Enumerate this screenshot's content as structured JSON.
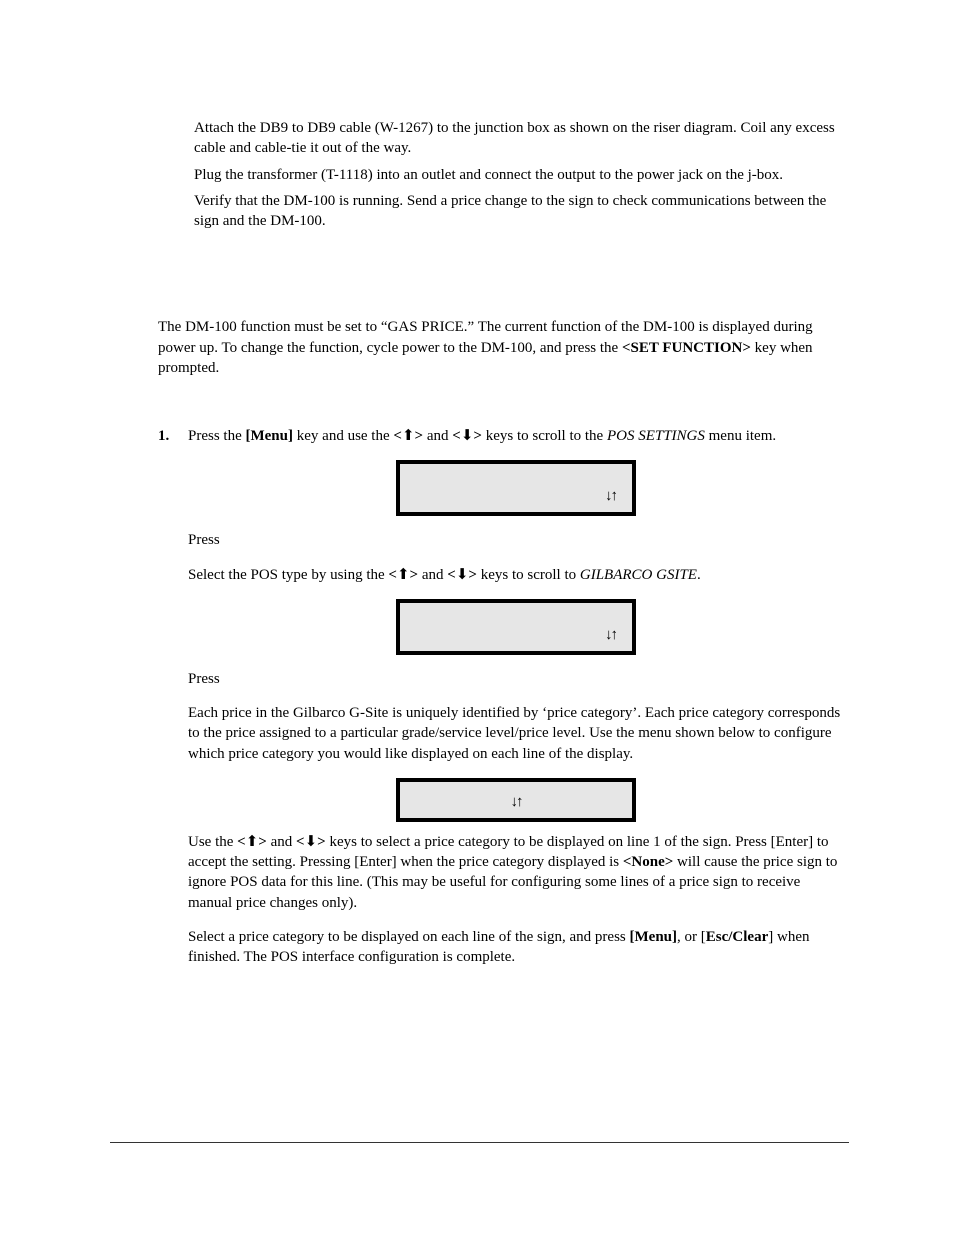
{
  "p1": "Attach the DB9 to DB9 cable (W-1267) to the junction box as shown on the riser diagram. Coil any excess cable and cable-tie it out of the way.",
  "p2": "Plug the transformer (T-1118) into an outlet and connect the output to the power jack on the j-box.",
  "p3": "Verify that the DM-100 is running. Send a price change to the sign to check communications between the sign and the DM-100.",
  "p4_a": "The DM-100 function must be set to “GAS PRICE.” The current function of the DM-100 is displayed during power up. To change the function, cycle power to the DM-100, and press the ",
  "set_function": "<SET FUNCTION>",
  "p4_b": " key when prompted.",
  "step_num": "1.",
  "s1_a": "Press the ",
  "s1_menu": "[Menu]",
  "s1_b": " key and use the ",
  "ang_open": "<",
  "ang_close": ">",
  "up_glyph": "⬆",
  "down_glyph": "⬇",
  "s1_c": " and ",
  "s1_d": " keys to scroll to the ",
  "pos_settings": "POS SETTINGS",
  "s1_e": " menu item.",
  "lcd_arrows": "↓↑",
  "press": "Press",
  "s3_a": "Select the POS type by using the ",
  "s3_b": " and ",
  "s3_c": " keys to scroll to ",
  "gilbarco": "GILBARCO GSITE",
  "s3_d": ".",
  "p5": "Each price in the Gilbarco G-Site is uniquely identified by ‘price category’. Each price category corresponds to the price assigned to a particular grade/service level/price level. Use the menu shown below to configure which price category you would like displayed on each line of the display.",
  "p6_a": "Use the ",
  "p6_b": " and ",
  "p6_c": " keys to select a price category to be displayed on line 1 of the sign. Press [Enter] to accept the setting. Pressing [Enter] when the price category displayed is ",
  "none": "<None>",
  "p6_d": " will cause the price sign to ignore POS data for this line. (This may be useful for configuring some lines of a price sign to receive manual price changes only).",
  "p7_a": "Select a price category to be displayed on each line of the sign, and press ",
  "p7_menu": "[Menu]",
  "p7_b": ", or [",
  "esc_clear": "Esc/Clear",
  "p7_c": "] when finished. The POS interface configuration is complete.",
  "footer": ""
}
